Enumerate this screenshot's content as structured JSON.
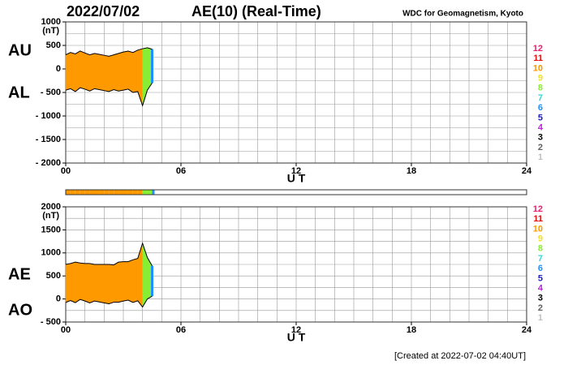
{
  "header": {
    "date": "2022/07/02",
    "title": "AE(10) (Real-Time)",
    "source": "WDC for Geomagnetism, Kyoto"
  },
  "footer": "[Created at 2022-07-02 04:40UT]",
  "station_legend": {
    "values": [
      12,
      11,
      10,
      9,
      8,
      7,
      6,
      5,
      4,
      3,
      2,
      1
    ],
    "colors": [
      "#e8206e",
      "#e01010",
      "#ff9900",
      "#f0e020",
      "#88ee33",
      "#30d8d8",
      "#1e90ff",
      "#2020c0",
      "#c020e0",
      "#000000",
      "#606060",
      "#c0c0c0"
    ]
  },
  "chart_data": [
    {
      "type": "line",
      "y_unit": "(nT)",
      "xlabel": "U T",
      "x": [
        0,
        0.25,
        0.5,
        0.75,
        1,
        1.25,
        1.5,
        1.75,
        2,
        2.25,
        2.5,
        2.75,
        3,
        3.25,
        3.5,
        3.75,
        4,
        4.25,
        4.5
      ],
      "stations": [
        10,
        10,
        10,
        10,
        10,
        10,
        10,
        10,
        10,
        10,
        10,
        10,
        10,
        10,
        10,
        10,
        8,
        8,
        6
      ],
      "series": [
        {
          "name": "AU",
          "color": "#000000",
          "values": [
            300,
            350,
            320,
            380,
            340,
            300,
            330,
            310,
            290,
            270,
            300,
            330,
            360,
            380,
            350,
            400,
            430,
            450,
            420
          ]
        },
        {
          "name": "AL",
          "color": "#000000",
          "values": [
            -450,
            -420,
            -480,
            -400,
            -430,
            -470,
            -420,
            -440,
            -460,
            -480,
            -440,
            -470,
            -450,
            -430,
            -500,
            -480,
            -780,
            -450,
            -300
          ]
        }
      ],
      "xlim": [
        0,
        24
      ],
      "xticks": [
        {
          "value": 0,
          "label": "00"
        },
        {
          "value": 6,
          "label": "06"
        },
        12,
        18,
        24
      ],
      "ylim": [
        -2000,
        1000
      ],
      "yticks": [
        1000,
        500,
        0,
        {
          "value": -500,
          "label": "- 500"
        },
        {
          "value": -1000,
          "label": "- 1000"
        },
        {
          "value": -1500,
          "label": "- 1500"
        },
        {
          "value": -2000,
          "label": "- 2000"
        }
      ],
      "grid": {
        "x": 1,
        "y": 250
      }
    },
    {
      "type": "line",
      "y_unit": "(nT)",
      "xlabel": "U T",
      "x": [
        0,
        0.25,
        0.5,
        0.75,
        1,
        1.25,
        1.5,
        1.75,
        2,
        2.25,
        2.5,
        2.75,
        3,
        3.25,
        3.5,
        3.75,
        4,
        4.25,
        4.5
      ],
      "stations": [
        10,
        10,
        10,
        10,
        10,
        10,
        10,
        10,
        10,
        10,
        10,
        10,
        10,
        10,
        10,
        10,
        8,
        8,
        6
      ],
      "series": [
        {
          "name": "AE",
          "color": "#000000",
          "values": [
            750,
            770,
            800,
            780,
            770,
            770,
            750,
            750,
            750,
            750,
            740,
            800,
            810,
            810,
            850,
            880,
            1210,
            900,
            720
          ]
        },
        {
          "name": "AO",
          "color": "#000000",
          "values": [
            -75,
            -35,
            -80,
            -10,
            -45,
            -85,
            -45,
            -65,
            -85,
            -105,
            -70,
            -70,
            -45,
            -25,
            -75,
            -40,
            -175,
            0,
            60
          ]
        }
      ],
      "xlim": [
        0,
        24
      ],
      "xticks": [
        {
          "value": 0,
          "label": "00"
        },
        {
          "value": 6,
          "label": "06"
        },
        12,
        18,
        24
      ],
      "ylim": [
        -500,
        2000
      ],
      "yticks": [
        2000,
        1500,
        1000,
        500,
        0,
        {
          "value": -500,
          "label": "- 500"
        }
      ],
      "grid": {
        "x": 1,
        "y": 250
      }
    }
  ]
}
